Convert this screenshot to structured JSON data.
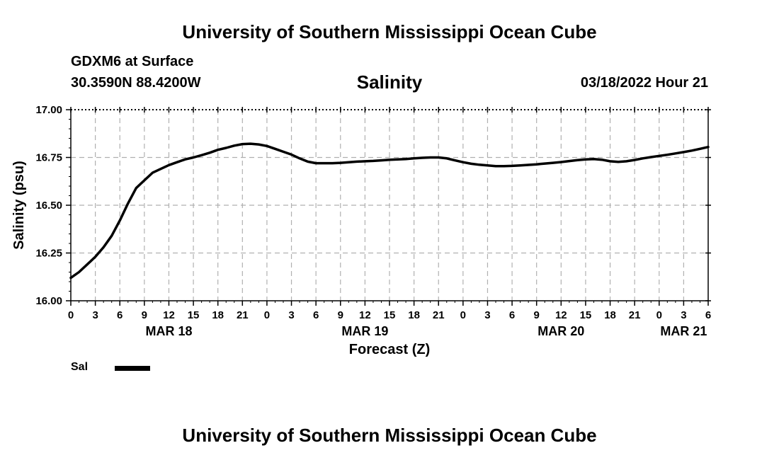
{
  "header": {
    "title": "University of Southern Mississippi Ocean Cube",
    "station": "GDXM6 at Surface",
    "coordinates": "30.3590N  88.4200W",
    "plot_title": "Salinity",
    "datetime": "03/18/2022 Hour 21"
  },
  "footer": {
    "title": "University of Southern Mississippi Ocean Cube"
  },
  "colors": {
    "line": "#000000",
    "grid": "#b0b0b0",
    "background": "#ffffff"
  },
  "chart_data": {
    "type": "line",
    "title": "Salinity",
    "xlabel": "Forecast (Z)",
    "ylabel": "Salinity (psu)",
    "xlim": [
      0,
      78
    ],
    "ylim": [
      16.0,
      17.0
    ],
    "grid": true,
    "x_ticks": [
      0,
      3,
      6,
      9,
      12,
      15,
      18,
      21,
      24,
      27,
      30,
      33,
      36,
      39,
      42,
      45,
      48,
      51,
      54,
      57,
      60,
      63,
      66,
      69,
      72,
      75,
      78
    ],
    "x_tick_labels": [
      "0",
      "3",
      "6",
      "9",
      "12",
      "15",
      "18",
      "21",
      "0",
      "3",
      "6",
      "9",
      "12",
      "15",
      "18",
      "21",
      "0",
      "3",
      "6",
      "9",
      "12",
      "15",
      "18",
      "21",
      "0",
      "3",
      "6"
    ],
    "y_ticks": [
      16.0,
      16.25,
      16.5,
      16.75,
      17.0
    ],
    "y_tick_labels": [
      "16.00",
      "16.25",
      "16.50",
      "16.75",
      "17.00"
    ],
    "date_labels": [
      {
        "x": 12,
        "label": "MAR 18"
      },
      {
        "x": 36,
        "label": "MAR 19"
      },
      {
        "x": 60,
        "label": "MAR 20"
      },
      {
        "x": 75,
        "label": "MAR 21"
      }
    ],
    "legend": [
      {
        "name": "Sal",
        "position": "bottom-left"
      }
    ],
    "series": [
      {
        "name": "Sal",
        "x": [
          0,
          1,
          2,
          3,
          4,
          5,
          6,
          7,
          8,
          9,
          10,
          11,
          12,
          13,
          14,
          15,
          16,
          17,
          18,
          19,
          20,
          21,
          22,
          23,
          24,
          25,
          26,
          27,
          28,
          29,
          30,
          31,
          32,
          33,
          34,
          35,
          36,
          37,
          38,
          39,
          40,
          41,
          42,
          43,
          44,
          45,
          46,
          47,
          48,
          49,
          50,
          51,
          52,
          53,
          54,
          55,
          56,
          57,
          58,
          59,
          60,
          61,
          62,
          63,
          64,
          65,
          66,
          67,
          68,
          69,
          70,
          71,
          72,
          73,
          74,
          75,
          76,
          77,
          78
        ],
        "values": [
          16.12,
          16.15,
          16.19,
          16.23,
          16.28,
          16.34,
          16.42,
          16.51,
          16.59,
          16.63,
          16.67,
          16.69,
          16.71,
          16.725,
          16.74,
          16.75,
          16.762,
          16.775,
          16.79,
          16.8,
          16.812,
          16.82,
          16.822,
          16.818,
          16.81,
          16.795,
          16.78,
          16.765,
          16.745,
          16.728,
          16.72,
          16.72,
          16.72,
          16.722,
          16.725,
          16.728,
          16.73,
          16.732,
          16.735,
          16.738,
          16.74,
          16.742,
          16.745,
          16.748,
          16.75,
          16.75,
          16.745,
          16.735,
          16.725,
          16.717,
          16.712,
          16.708,
          16.705,
          16.705,
          16.706,
          16.708,
          16.711,
          16.714,
          16.718,
          16.722,
          16.726,
          16.731,
          16.736,
          16.74,
          16.742,
          16.738,
          16.73,
          16.727,
          16.73,
          16.737,
          16.745,
          16.752,
          16.758,
          16.764,
          16.771,
          16.778,
          16.786,
          16.795,
          16.805
        ]
      }
    ]
  }
}
